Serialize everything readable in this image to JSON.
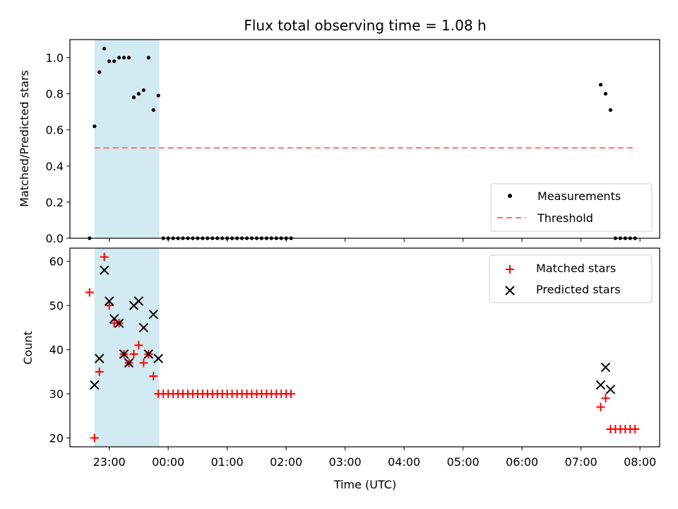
{
  "chart_data": [
    {
      "type": "scatter",
      "title": "Flux total observing time = 1.08 h",
      "ylabel": "Matched/Predicted stars",
      "xlabel": "",
      "xlim": [
        "22:20",
        "08:20"
      ],
      "ylim": [
        0,
        1.1
      ],
      "yticks": [
        "0.0",
        "0.2",
        "0.4",
        "0.6",
        "0.8",
        "1.0"
      ],
      "shaded_interval": {
        "start": "22:45",
        "end": "23:51",
        "color": "#add8e6"
      },
      "threshold": {
        "name": "Threshold",
        "value": 0.5,
        "x_start": "22:45",
        "x_end": "07:55",
        "color": "#ff7070"
      },
      "legend": {
        "position": "lower right",
        "entries": [
          "Measurements",
          "Threshold"
        ]
      },
      "series": [
        {
          "name": "Measurements",
          "color": "#000000",
          "marker": "dot",
          "x": [
            "22:40",
            "22:45",
            "22:50",
            "22:55",
            "23:00",
            "23:05",
            "23:10",
            "23:15",
            "23:20",
            "23:25",
            "23:30",
            "23:35",
            "23:40",
            "23:45",
            "23:50",
            "23:55",
            "00:00",
            "00:05",
            "00:10",
            "00:15",
            "00:20",
            "00:25",
            "00:30",
            "00:35",
            "00:40",
            "00:45",
            "00:50",
            "00:55",
            "01:00",
            "01:05",
            "01:10",
            "01:15",
            "01:20",
            "01:25",
            "01:30",
            "01:35",
            "01:40",
            "01:45",
            "01:50",
            "01:55",
            "02:00",
            "02:05",
            "07:20",
            "07:25",
            "07:30",
            "07:35",
            "07:40",
            "07:45",
            "07:50",
            "07:55"
          ],
          "y": [
            0.0,
            0.62,
            0.92,
            1.05,
            0.98,
            0.98,
            1.0,
            1.0,
            1.0,
            0.78,
            0.8,
            0.82,
            1.0,
            0.71,
            0.79,
            0.0,
            0.0,
            0.0,
            0.0,
            0.0,
            0.0,
            0.0,
            0.0,
            0.0,
            0.0,
            0.0,
            0.0,
            0.0,
            0.0,
            0.0,
            0.0,
            0.0,
            0.0,
            0.0,
            0.0,
            0.0,
            0.0,
            0.0,
            0.0,
            0.0,
            0.0,
            0.0,
            0.85,
            0.8,
            0.71,
            0.0,
            0.0,
            0.0,
            0.0,
            0.0
          ]
        }
      ]
    },
    {
      "type": "scatter",
      "title": "",
      "ylabel": "Count",
      "xlabel": "Time (UTC)",
      "xlim": [
        "22:20",
        "08:20"
      ],
      "ylim": [
        18,
        63
      ],
      "yticks": [
        "20",
        "30",
        "40",
        "50",
        "60"
      ],
      "xticks": [
        "23:00",
        "00:00",
        "01:00",
        "02:00",
        "03:00",
        "04:00",
        "05:00",
        "06:00",
        "07:00",
        "08:00"
      ],
      "shaded_interval": {
        "start": "22:45",
        "end": "23:51",
        "color": "#add8e6"
      },
      "legend": {
        "position": "upper right",
        "entries": [
          "Matched stars",
          "Predicted stars"
        ]
      },
      "series": [
        {
          "name": "Matched stars",
          "color": "#ff0000",
          "marker": "plus",
          "x": [
            "22:40",
            "22:45",
            "22:50",
            "22:55",
            "23:00",
            "23:05",
            "23:10",
            "23:15",
            "23:20",
            "23:25",
            "23:30",
            "23:35",
            "23:40",
            "23:45",
            "23:50",
            "23:55",
            "00:00",
            "00:05",
            "00:10",
            "00:15",
            "00:20",
            "00:25",
            "00:30",
            "00:35",
            "00:40",
            "00:45",
            "00:50",
            "00:55",
            "01:00",
            "01:05",
            "01:10",
            "01:15",
            "01:20",
            "01:25",
            "01:30",
            "01:35",
            "01:40",
            "01:45",
            "01:50",
            "01:55",
            "02:00",
            "02:05",
            "07:20",
            "07:25",
            "07:30",
            "07:35",
            "07:40",
            "07:45",
            "07:50",
            "07:55"
          ],
          "y": [
            53,
            20,
            35,
            61,
            50,
            46,
            46,
            39,
            37,
            39,
            41,
            37,
            39,
            34,
            30,
            30,
            30,
            30,
            30,
            30,
            30,
            30,
            30,
            30,
            30,
            30,
            30,
            30,
            30,
            30,
            30,
            30,
            30,
            30,
            30,
            30,
            30,
            30,
            30,
            30,
            30,
            30,
            27,
            29,
            22,
            22,
            22,
            22,
            22,
            22
          ]
        },
        {
          "name": "Predicted stars",
          "color": "#000000",
          "marker": "x",
          "x": [
            "22:45",
            "22:50",
            "22:55",
            "23:00",
            "23:05",
            "23:10",
            "23:15",
            "23:20",
            "23:25",
            "23:30",
            "23:35",
            "23:40",
            "23:45",
            "23:50",
            "07:20",
            "07:25",
            "07:30"
          ],
          "y": [
            32,
            38,
            58,
            51,
            47,
            46,
            39,
            37,
            50,
            51,
            45,
            39,
            48,
            38,
            32,
            36,
            31
          ]
        }
      ]
    }
  ]
}
